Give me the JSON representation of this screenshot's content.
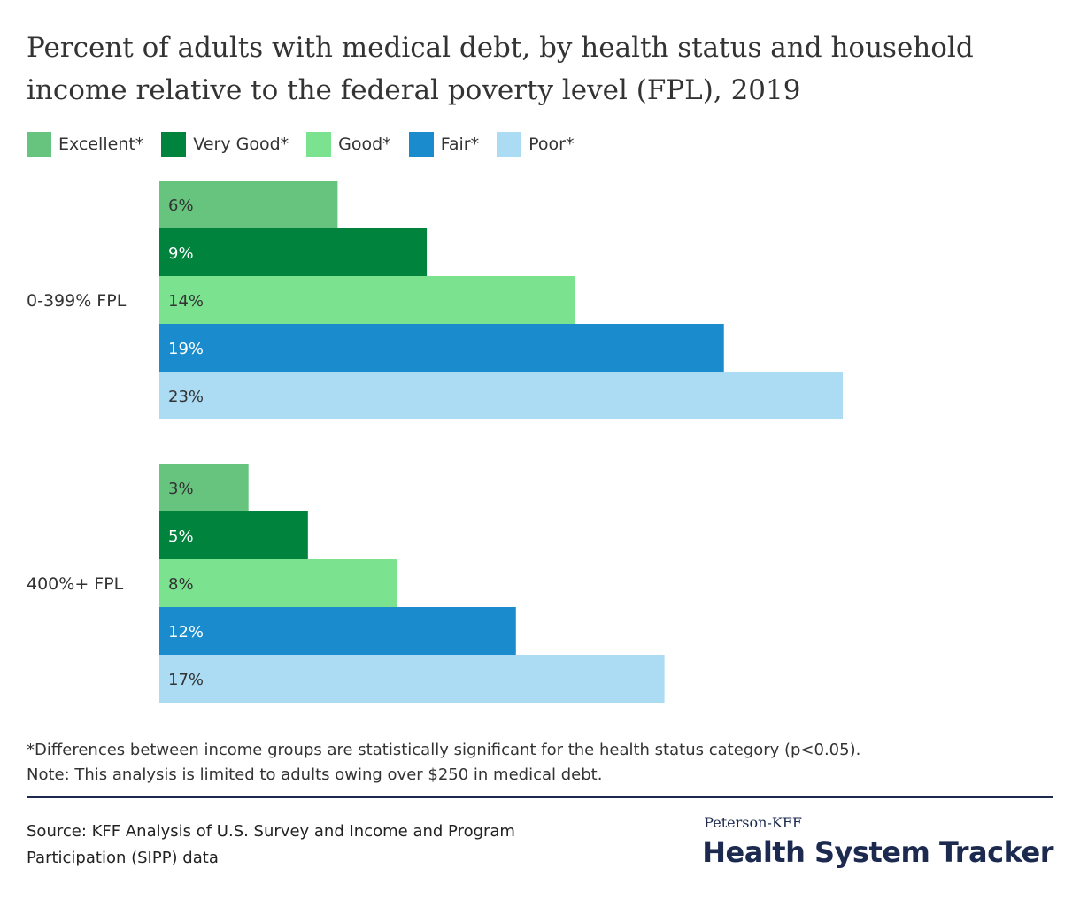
{
  "title": {
    "line1": "Percent of adults with medical debt, by health status and household",
    "line2": "income relative to the federal poverty level (FPL), 2019"
  },
  "legend": [
    {
      "label": "Excellent*",
      "color": "#66c47e"
    },
    {
      "label": "Very Good*",
      "color": "#00843d"
    },
    {
      "label": "Good*",
      "color": "#7be28f"
    },
    {
      "label": "Fair*",
      "color": "#1a8bcc"
    },
    {
      "label": "Poor*",
      "color": "#abdcf4"
    }
  ],
  "chart_data": {
    "type": "bar",
    "orientation": "horizontal",
    "categories": [
      "0-399% FPL",
      "400%+ FPL"
    ],
    "series": [
      {
        "name": "Excellent*",
        "values": [
          6,
          3
        ],
        "labels": [
          "6%",
          "3%"
        ],
        "color": "#66c47e",
        "label_color": "#333333"
      },
      {
        "name": "Very Good*",
        "values": [
          9,
          5
        ],
        "labels": [
          "9%",
          "5%"
        ],
        "color": "#00843d",
        "label_color": "#ffffff"
      },
      {
        "name": "Good*",
        "values": [
          14,
          8
        ],
        "labels": [
          "14%",
          "8%"
        ],
        "color": "#7be28f",
        "label_color": "#333333"
      },
      {
        "name": "Fair*",
        "values": [
          19,
          12
        ],
        "labels": [
          "19%",
          "12%"
        ],
        "color": "#1a8bcc",
        "label_color": "#ffffff"
      },
      {
        "name": "Poor*",
        "values": [
          23,
          17
        ],
        "labels": [
          "23%",
          "17%"
        ],
        "color": "#abdcf4",
        "label_color": "#333333"
      }
    ],
    "xlim": [
      0,
      23
    ],
    "grid": false,
    "legend_position": "top-left"
  },
  "notes": {
    "line1": "*Differences between income groups are statistically significant for the health status category (p<0.05).",
    "line2": "Note: This analysis is limited to adults owing over $250 in medical debt."
  },
  "source": {
    "line1": "Source: KFF Analysis of U.S. Survey and Income and Program",
    "line2": "Participation (SIPP) data"
  },
  "brand": {
    "top": "Peterson-KFF",
    "main": "Health System Tracker"
  }
}
